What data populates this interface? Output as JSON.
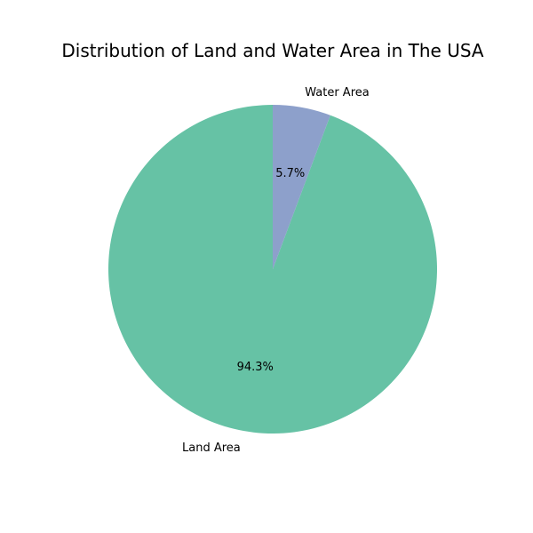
{
  "chart_data": {
    "type": "pie",
    "title": "Distribution of Land and Water Area in The USA",
    "slices": [
      {
        "label": "Land Area",
        "value": 94.3,
        "pct_label": "94.3%",
        "color": "#66c2a5"
      },
      {
        "label": "Water Area",
        "value": 5.7,
        "pct_label": "5.7%",
        "color": "#8da0cb"
      }
    ],
    "start_angle": "top, counter-clockwise",
    "legend": "none"
  }
}
